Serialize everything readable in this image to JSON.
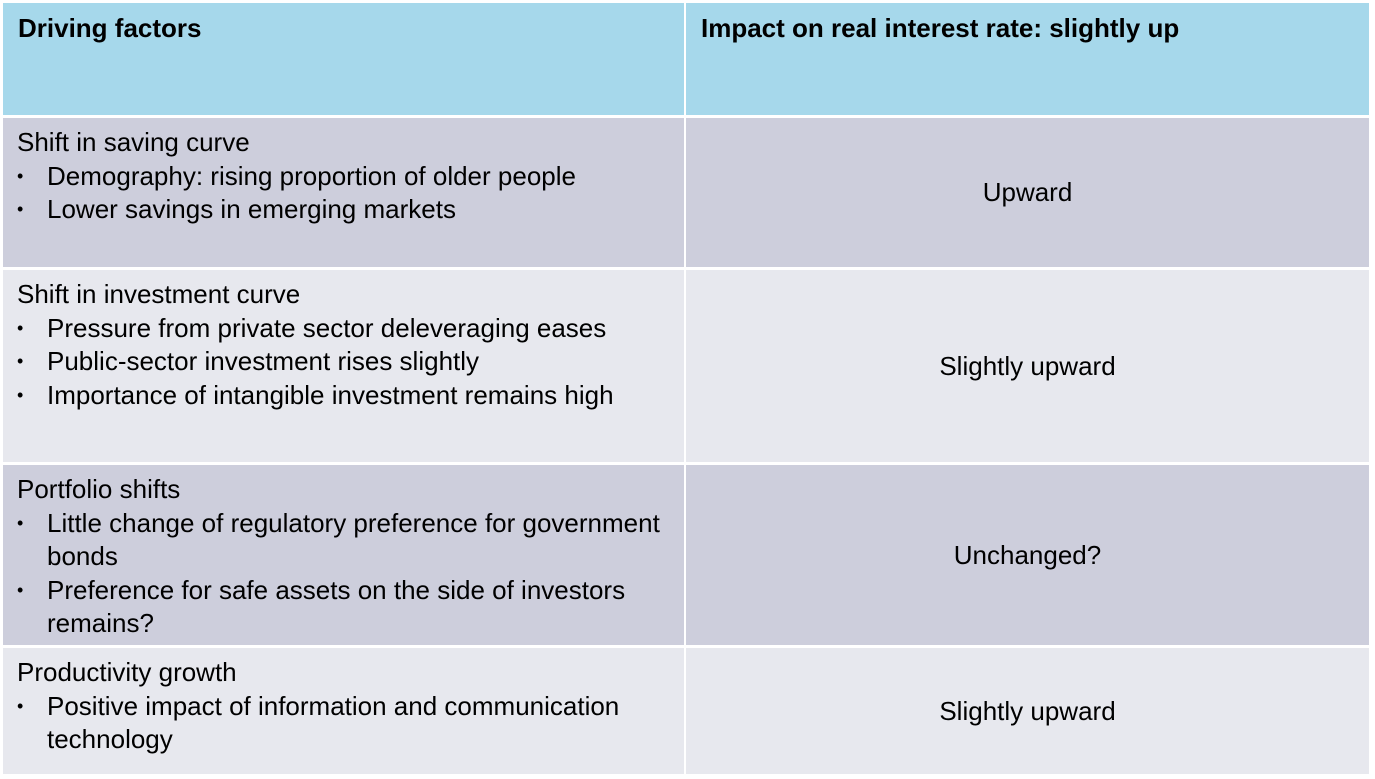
{
  "header": {
    "col1": "Driving factors",
    "col2": "Impact on real interest rate: slightly up"
  },
  "rows": [
    {
      "title": "Shift in saving curve",
      "bullets": [
        "Demography: rising proportion of older people",
        "Lower savings in emerging markets"
      ],
      "impact": "Upward"
    },
    {
      "title": "Shift in investment curve",
      "bullets": [
        "Pressure from private sector deleveraging eases",
        "Public-sector investment rises slightly",
        "Importance of intangible investment remains high"
      ],
      "impact": "Slightly upward"
    },
    {
      "title": "Portfolio shifts",
      "bullets": [
        "Little change of regulatory preference for government bonds",
        "Preference for safe assets on the side of investors remains?"
      ],
      "impact": "Unchanged?"
    },
    {
      "title": "Productivity growth",
      "bullets": [
        "Positive impact of information and communication technology"
      ],
      "impact": "Slightly upward"
    }
  ],
  "colors": {
    "header_bg": "#a6d8eb",
    "row_dark_bg": "#cdcedc",
    "row_light_bg": "#e7e8ee"
  }
}
